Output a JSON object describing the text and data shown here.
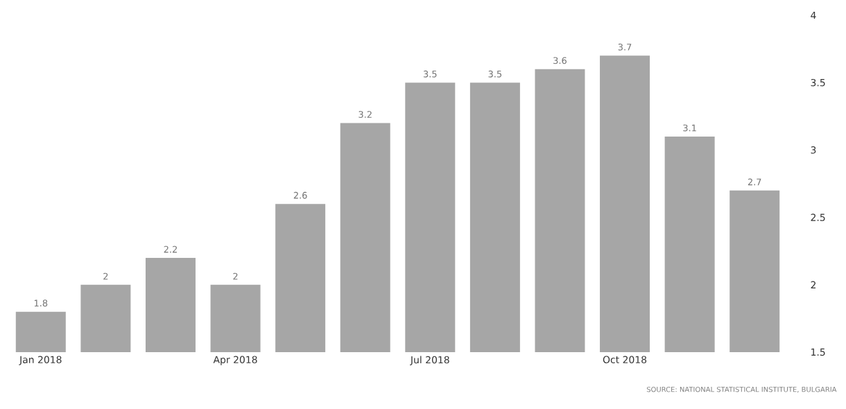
{
  "chart_data": {
    "type": "bar",
    "categories": [
      "Jan 2018",
      null,
      null,
      "Apr 2018",
      null,
      null,
      "Jul 2018",
      null,
      null,
      "Oct 2018",
      null,
      null
    ],
    "values": [
      1.8,
      2,
      2.2,
      2,
      2.6,
      3.2,
      3.5,
      3.5,
      3.6,
      3.7,
      3.1,
      2.7
    ],
    "color": "#a6a6a6",
    "ylim": [
      1.5,
      4
    ],
    "yticks": [
      1.5,
      2,
      2.5,
      3,
      3.5,
      4
    ],
    "data_labels": true,
    "annotations": [
      "SOURCE: NATIONAL STATISTICAL INSTITUTE, BULGARIA"
    ]
  }
}
